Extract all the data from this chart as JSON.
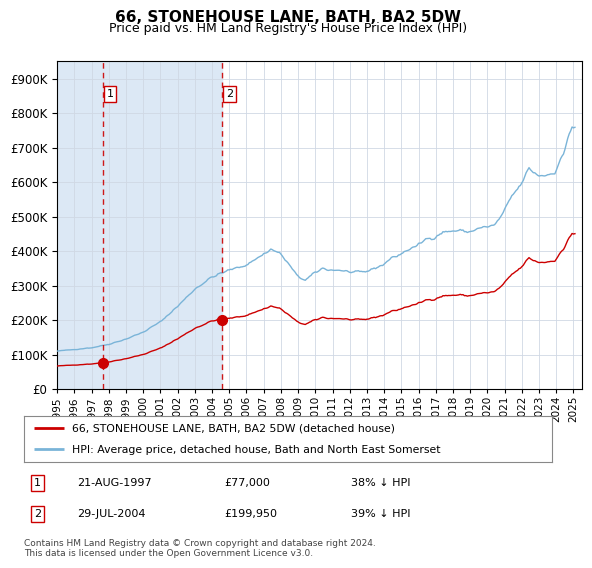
{
  "title": "66, STONEHOUSE LANE, BATH, BA2 5DW",
  "subtitle": "Price paid vs. HM Land Registry's House Price Index (HPI)",
  "legend_entry1": "66, STONEHOUSE LANE, BATH, BA2 5DW (detached house)",
  "legend_entry2": "HPI: Average price, detached house, Bath and North East Somerset",
  "footnote": "Contains HM Land Registry data © Crown copyright and database right 2024.\nThis data is licensed under the Open Government Licence v3.0.",
  "table_rows": [
    {
      "num": "1",
      "date": "21-AUG-1997",
      "price": "£77,000",
      "hpi": "38% ↓ HPI"
    },
    {
      "num": "2",
      "date": "29-JUL-2004",
      "price": "£199,950",
      "hpi": "39% ↓ HPI"
    }
  ],
  "purchase1_year": 1997.6389,
  "purchase1_price": 77000,
  "purchase2_year": 2004.5694,
  "purchase2_price": 199950,
  "hpi_color": "#7ab4d8",
  "property_color": "#cc0000",
  "vline_color": "#cc0000",
  "shade_color": "#dce8f5",
  "plot_bg": "#ffffff",
  "grid_color": "#d0d8e4",
  "ylim": [
    0,
    950000
  ],
  "yticks": [
    0,
    100000,
    200000,
    300000,
    400000,
    500000,
    600000,
    700000,
    800000,
    900000
  ],
  "xlim_start": 1995.0,
  "xlim_end": 2025.5,
  "xtick_years": [
    1995,
    1996,
    1997,
    1998,
    1999,
    2000,
    2001,
    2002,
    2003,
    2004,
    2005,
    2006,
    2007,
    2008,
    2009,
    2010,
    2011,
    2012,
    2013,
    2014,
    2015,
    2016,
    2017,
    2018,
    2019,
    2020,
    2021,
    2022,
    2023,
    2024,
    2025
  ],
  "figsize": [
    6.0,
    5.6
  ],
  "dpi": 100
}
